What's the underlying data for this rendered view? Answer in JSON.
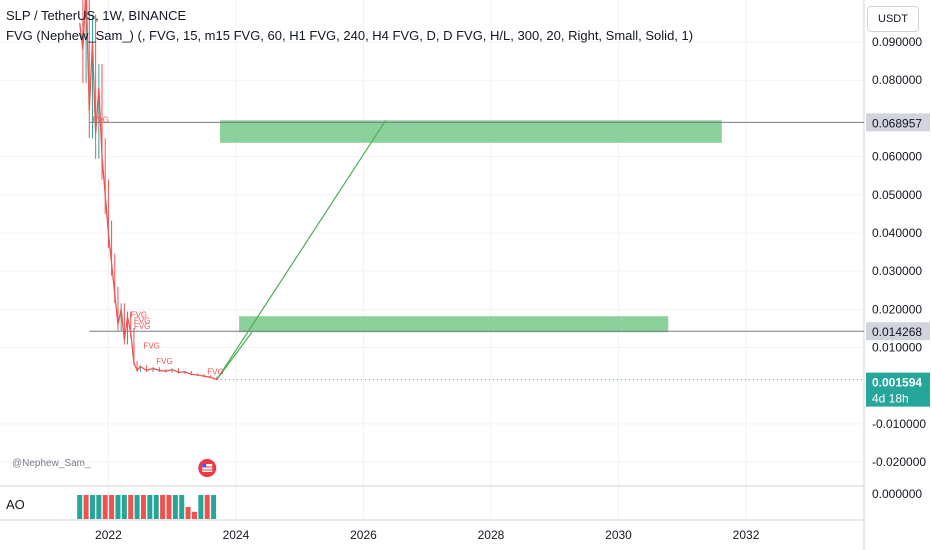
{
  "header": {
    "title": "SLP / TetherUS, 1W, BINANCE",
    "indicator": "FVG (Nephew_Sam_) (, FVG, 15, m15 FVG, 60, H1 FVG, 240, H4 FVG, D, D FVG, H/L, 300, 20, Right, Small, Solid, 1)"
  },
  "currency_button": "USDT",
  "watermark": "@Nephew_Sam_",
  "ao_label": "AO",
  "ao_zero_label": "0.000000",
  "colors": {
    "up": "#26a69a",
    "down": "#ef5350",
    "zone": "#66c27a",
    "current": "#26a69a",
    "line": "#4caf50",
    "grid": "#f0f3fa"
  },
  "chart_data": {
    "type": "line",
    "title": "SLP / TetherUS, 1W, BINANCE",
    "ylim": [
      -0.026,
      0.101
    ],
    "xlim": [
      2020.3,
      2033.85
    ],
    "grid": true,
    "x_ticks": [
      "2022",
      "2024",
      "2026",
      "2028",
      "2030",
      "2032"
    ],
    "x_tick_values": [
      2022,
      2024,
      2026,
      2028,
      2030,
      2032
    ],
    "y_ticks": [
      "0.090000",
      "0.080000",
      "0.060000",
      "0.050000",
      "0.040000",
      "0.030000",
      "0.020000",
      "0.010000",
      "-0.010000",
      "-0.020000"
    ],
    "y_tick_values": [
      0.09,
      0.08,
      0.06,
      0.05,
      0.04,
      0.03,
      0.02,
      0.01,
      -0.01,
      -0.02
    ],
    "price_series": {
      "name": "SLP/USDT",
      "x": [
        2021.55,
        2021.6,
        2021.65,
        2021.7,
        2021.75,
        2021.8,
        2021.85,
        2021.9,
        2021.95,
        2022.0,
        2022.05,
        2022.1,
        2022.15,
        2022.2,
        2022.25,
        2022.3,
        2022.35,
        2022.4,
        2022.45,
        2022.5,
        2022.6,
        2022.7,
        2022.8,
        2022.9,
        2023.0,
        2023.1,
        2023.2,
        2023.3,
        2023.4,
        2023.5,
        2023.6,
        2023.7
      ],
      "y": [
        0.095,
        0.088,
        0.105,
        0.072,
        0.09,
        0.066,
        0.078,
        0.06,
        0.05,
        0.04,
        0.032,
        0.024,
        0.016,
        0.02,
        0.012,
        0.018,
        0.014,
        0.006,
        0.004,
        0.005,
        0.004,
        0.0045,
        0.004,
        0.0038,
        0.0042,
        0.0035,
        0.0036,
        0.003,
        0.0028,
        0.0025,
        0.0022,
        0.0016
      ]
    },
    "fvg_labels": [
      "FVG",
      "FVG",
      "FVG",
      "FVG",
      "FVG",
      "FVG",
      "FVG"
    ],
    "fvg_label_points": [
      [
        2021.75,
        0.0689
      ],
      [
        2022.35,
        0.0178
      ],
      [
        2022.4,
        0.0163
      ],
      [
        2022.4,
        0.0148
      ],
      [
        2022.55,
        0.0097
      ],
      [
        2022.75,
        0.0057
      ],
      [
        2023.55,
        0.003
      ]
    ],
    "zones": [
      {
        "x_start": 2023.75,
        "x_end": 2031.62,
        "y_low": 0.0636,
        "y_high": 0.0695
      },
      {
        "x_start": 2024.05,
        "x_end": 2030.78,
        "y_low": 0.014,
        "y_high": 0.0182
      }
    ],
    "hlines": [
      {
        "y": 0.068957,
        "label": "0.068957"
      },
      {
        "y": 0.014268,
        "label": "0.014268"
      }
    ],
    "projection_lines": [
      {
        "x": [
          2023.7,
          2026.35
        ],
        "y": [
          0.0016,
          0.0695
        ]
      },
      {
        "x": [
          2023.7,
          2024.25
        ],
        "y": [
          0.0016,
          0.014
        ]
      }
    ],
    "current_price": {
      "value": 0.001594,
      "label": "0.001594",
      "countdown": "4d 18h"
    },
    "ao": {
      "name": "AO",
      "x": [
        2021.55,
        2021.65,
        2021.75,
        2021.85,
        2021.95,
        2022.05,
        2022.15,
        2022.25,
        2022.35,
        2022.45,
        2022.55,
        2022.65,
        2022.75,
        2022.85,
        2022.95,
        2023.05,
        2023.15,
        2023.25,
        2023.35,
        2023.45,
        2023.55,
        2023.65
      ],
      "values": [
        1,
        -1,
        1,
        1,
        -1,
        -1,
        1,
        1,
        -1,
        1,
        -1,
        1,
        1,
        -1,
        -1,
        1,
        1,
        -0.5,
        -0.3,
        1,
        -1,
        1
      ]
    }
  }
}
